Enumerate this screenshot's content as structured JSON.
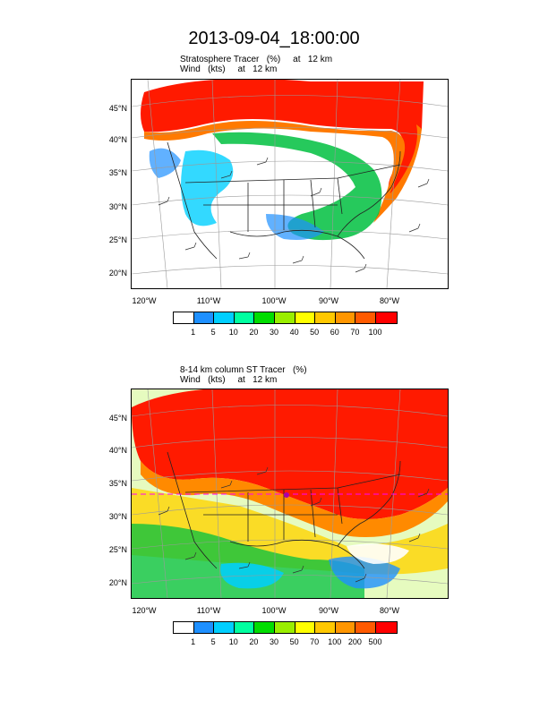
{
  "title": "2013-09-04_18:00:00",
  "panels": [
    {
      "id": "top",
      "subtitle_line1": "Stratosphere Tracer   (%)     at   12 km",
      "subtitle_line2": "Wind   (kts)     at   12 km",
      "lat_labels": [
        "45°N",
        "40°N",
        "35°N",
        "30°N",
        "25°N",
        "20°N"
      ],
      "lon_labels": [
        "120°W",
        "110°W",
        "100°W",
        "90°W",
        "80°W"
      ],
      "colorbar_labels": [
        "1",
        "5",
        "10",
        "20",
        "30",
        "40",
        "50",
        "60",
        "70",
        "100"
      ],
      "colorbar_colors": [
        "#ffffff",
        "#1e90ff",
        "#00cfff",
        "#00ffa0",
        "#00dd00",
        "#9aee00",
        "#ffff00",
        "#ffc800",
        "#ff9600",
        "#ff5a00",
        "#ff0000"
      ]
    },
    {
      "id": "bottom",
      "subtitle_line1": "8-14 km column ST Tracer   (%)",
      "subtitle_line2": "Wind   (kts)     at   12 km",
      "lat_labels": [
        "45°N",
        "40°N",
        "35°N",
        "30°N",
        "25°N",
        "20°N"
      ],
      "lon_labels": [
        "120°W",
        "110°W",
        "100°W",
        "90°W",
        "80°W"
      ],
      "colorbar_labels": [
        "1",
        "5",
        "10",
        "20",
        "30",
        "50",
        "70",
        "100",
        "200",
        "500"
      ],
      "colorbar_colors": [
        "#ffffff",
        "#1e90ff",
        "#00cfff",
        "#00ffa0",
        "#00dd00",
        "#9aee00",
        "#ffff00",
        "#ffc800",
        "#ff9600",
        "#ff5a00",
        "#ff0000"
      ]
    }
  ]
}
